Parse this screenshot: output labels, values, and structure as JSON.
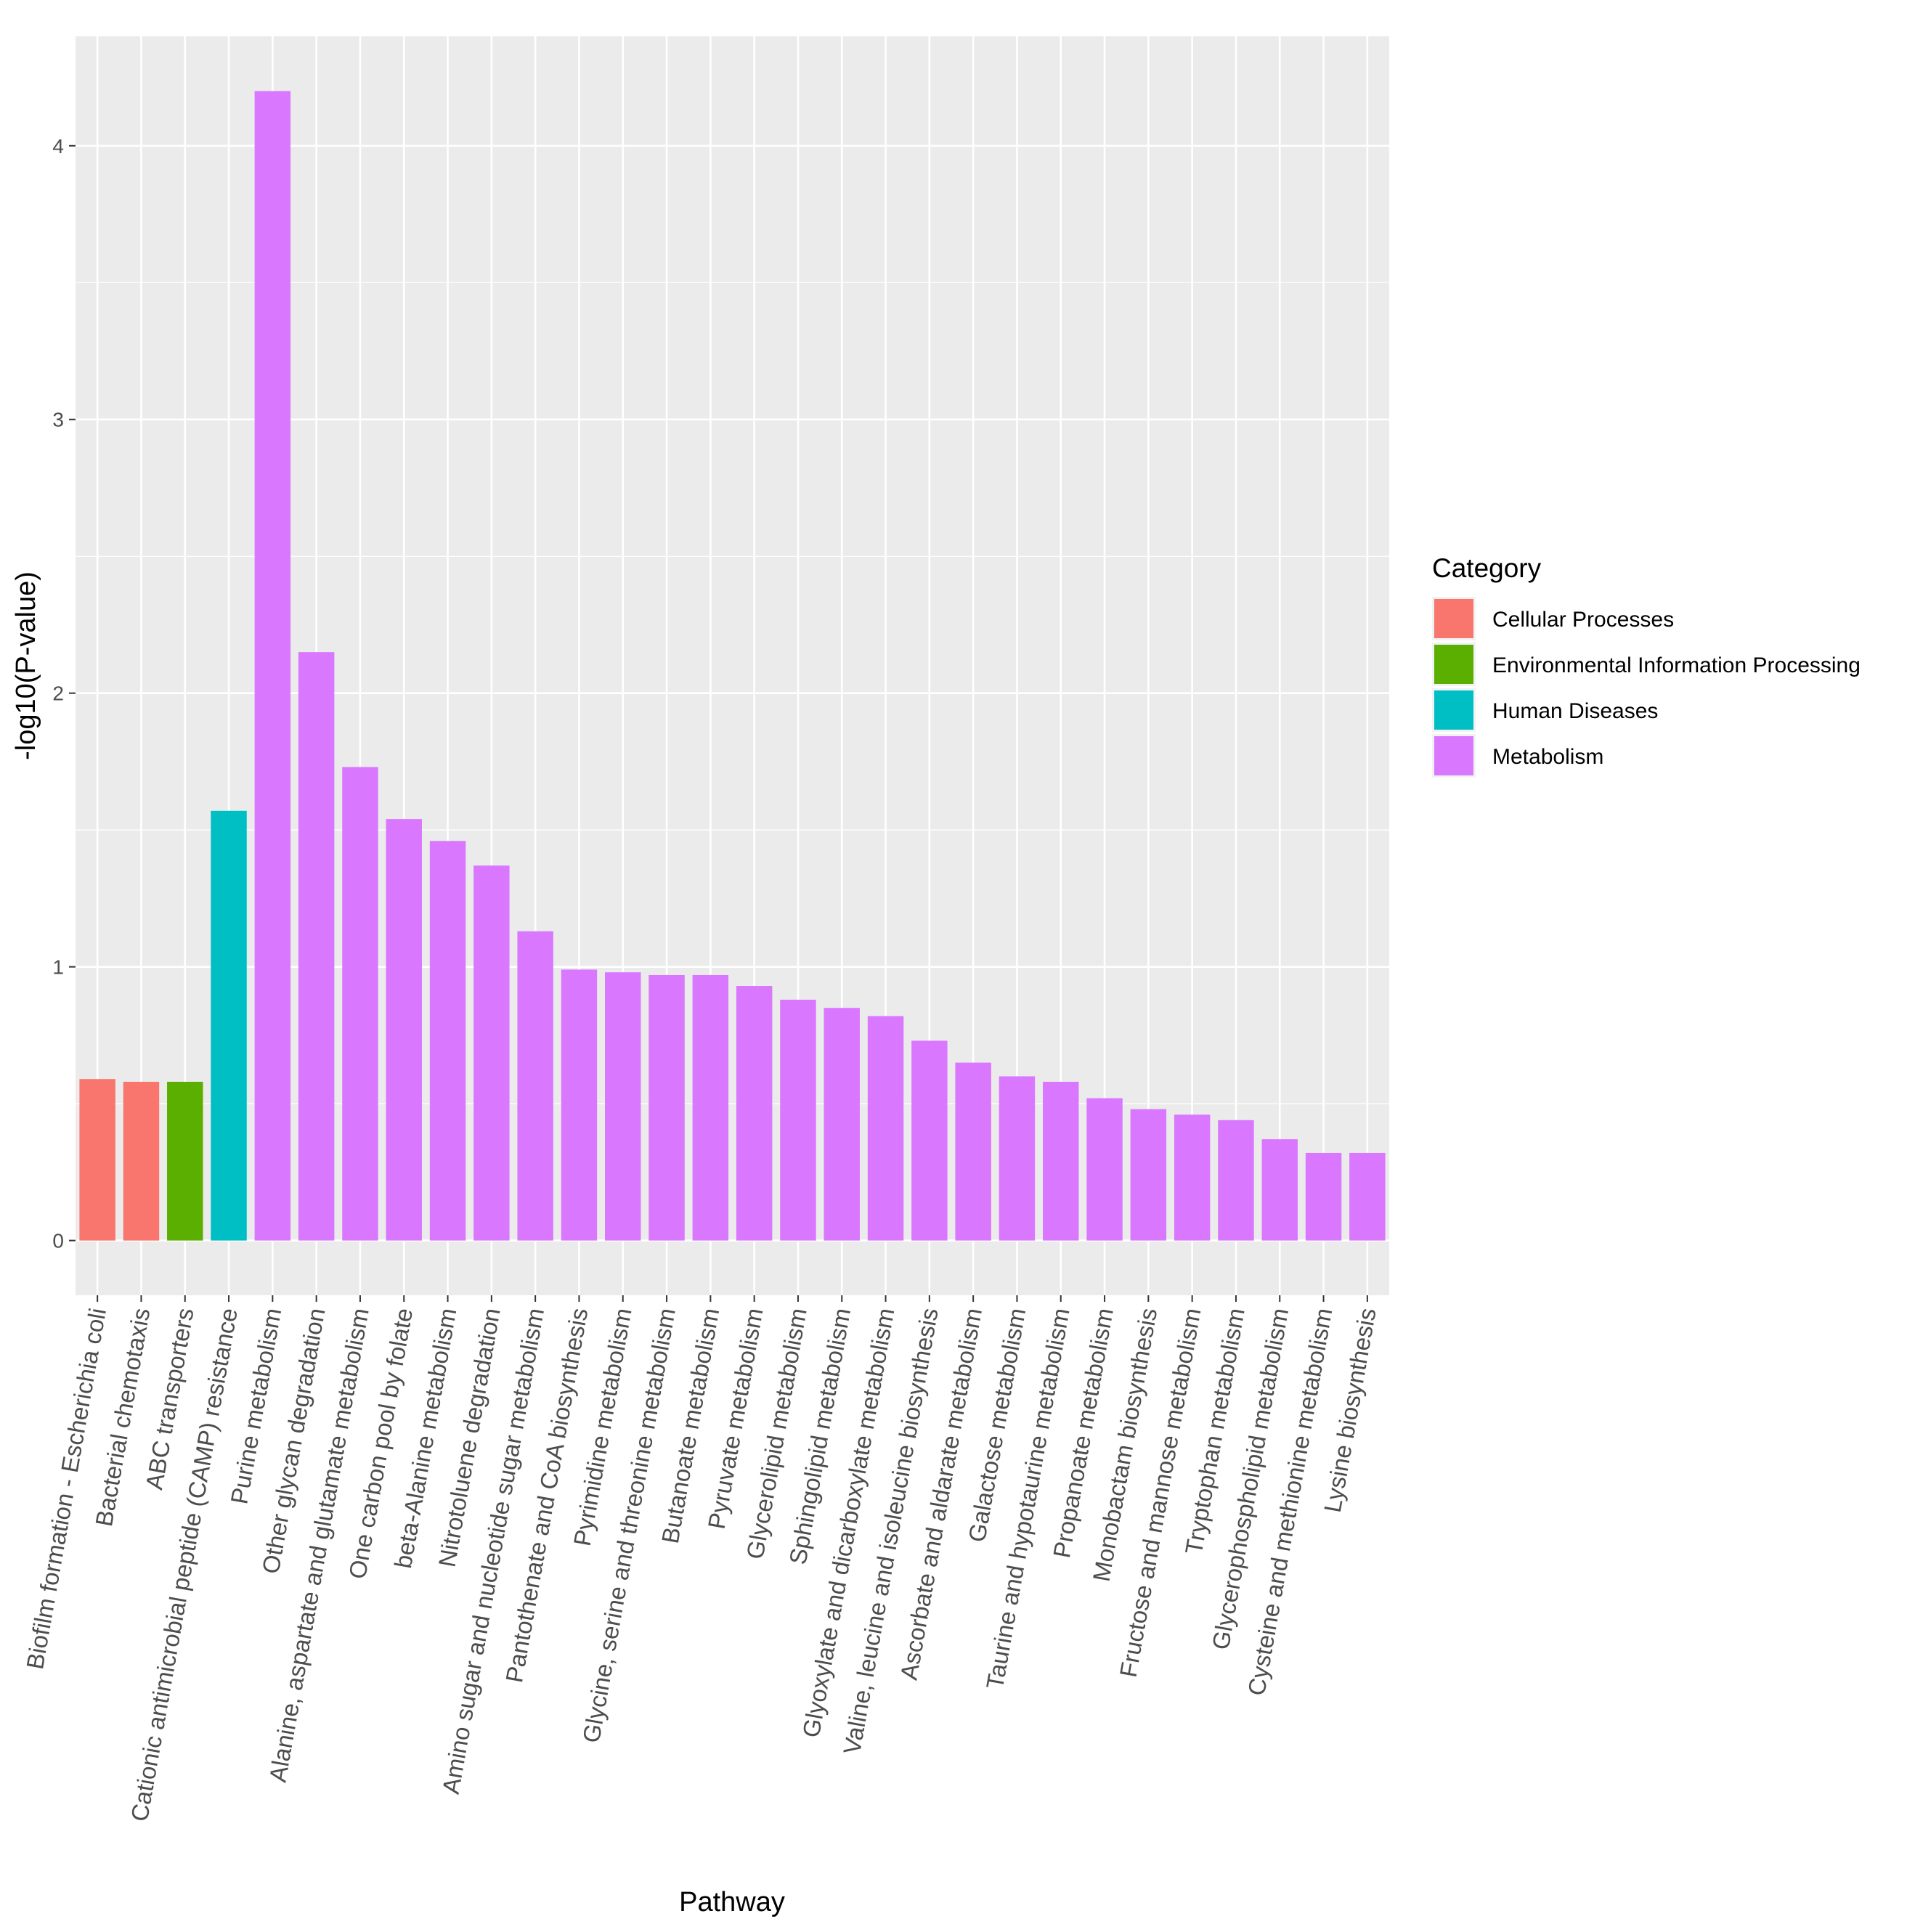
{
  "chart_data": {
    "type": "bar",
    "title": "",
    "xlabel": "Pathway",
    "ylabel": "-log10(P-value)",
    "ylim": [
      -0.2,
      4.4
    ],
    "yticks": [
      0,
      1,
      2,
      3,
      4
    ],
    "grid": true,
    "legend_position": "right",
    "legend": {
      "title": "Category",
      "items": [
        {
          "name": "Cellular Processes",
          "color": "#F8766D"
        },
        {
          "name": "Environmental Information Processing",
          "color": "#5BAF00"
        },
        {
          "name": "Human Diseases",
          "color": "#00BFC4"
        },
        {
          "name": "Metabolism",
          "color": "#DA77FF"
        }
      ]
    },
    "categories": [
      "Biofilm formation - Escherichia coli",
      "Bacterial chemotaxis",
      "ABC transporters",
      "Cationic antimicrobial peptide (CAMP) resistance",
      "Purine metabolism",
      "Other glycan degradation",
      "Alanine, aspartate and glutamate metabolism",
      "One carbon pool by folate",
      "beta-Alanine metabolism",
      "Nitrotoluene degradation",
      "Amino sugar and nucleotide sugar metabolism",
      "Pantothenate and CoA biosynthesis",
      "Pyrimidine metabolism",
      "Glycine, serine and threonine metabolism",
      "Butanoate metabolism",
      "Pyruvate metabolism",
      "Glycerolipid metabolism",
      "Sphingolipid metabolism",
      "Glyoxylate and dicarboxylate metabolism",
      "Valine, leucine and isoleucine biosynthesis",
      "Ascorbate and aldarate metabolism",
      "Galactose metabolism",
      "Taurine and hypotaurine metabolism",
      "Propanoate metabolism",
      "Monobactam biosynthesis",
      "Fructose and mannose metabolism",
      "Tryptophan metabolism",
      "Glycerophospholipid metabolism",
      "Cysteine and methionine metabolism",
      "Lysine biosynthesis"
    ],
    "values": [
      0.59,
      0.58,
      0.58,
      1.57,
      4.2,
      2.15,
      1.73,
      1.54,
      1.46,
      1.37,
      1.13,
      0.99,
      0.98,
      0.97,
      0.97,
      0.93,
      0.88,
      0.85,
      0.82,
      0.73,
      0.65,
      0.6,
      0.58,
      0.52,
      0.48,
      0.46,
      0.44,
      0.37,
      0.32,
      0.32
    ],
    "series_category": [
      "Cellular Processes",
      "Cellular Processes",
      "Environmental Information Processing",
      "Human Diseases",
      "Metabolism",
      "Metabolism",
      "Metabolism",
      "Metabolism",
      "Metabolism",
      "Metabolism",
      "Metabolism",
      "Metabolism",
      "Metabolism",
      "Metabolism",
      "Metabolism",
      "Metabolism",
      "Metabolism",
      "Metabolism",
      "Metabolism",
      "Metabolism",
      "Metabolism",
      "Metabolism",
      "Metabolism",
      "Metabolism",
      "Metabolism",
      "Metabolism",
      "Metabolism",
      "Metabolism",
      "Metabolism",
      "Metabolism"
    ]
  }
}
